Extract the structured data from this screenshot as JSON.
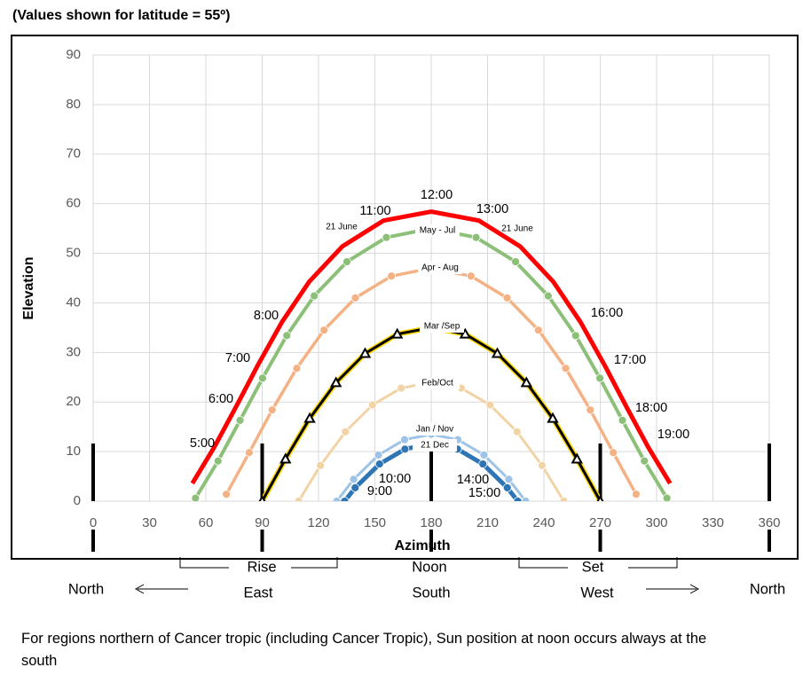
{
  "chart_data": {
    "type": "line",
    "title": "(Values shown for latitude = 55º)",
    "x_label": "Azimuth",
    "y_label": "Elevation",
    "xlim": [
      0,
      360
    ],
    "ylim": [
      0,
      90
    ],
    "xticks": [
      0,
      30,
      60,
      90,
      120,
      150,
      180,
      210,
      240,
      270,
      300,
      330,
      360
    ],
    "yticks": [
      0,
      10,
      20,
      30,
      40,
      50,
      60,
      70,
      80,
      90
    ],
    "grid": true,
    "series": [
      {
        "name": "21 June",
        "color": "#ff0000",
        "x": [
          52.8,
          64.5,
          76.0,
          87.8,
          100.5,
          115.1,
          132.7,
          154.6,
          180,
          205.4,
          227.3,
          244.9,
          259.5,
          272.2,
          284.0,
          295.5,
          307.2
        ],
        "values": [
          3.6,
          10.9,
          19.0,
          27.5,
          36.1,
          44.3,
          51.4,
          56.6,
          58.4,
          56.6,
          51.4,
          44.3,
          36.1,
          27.5,
          19.0,
          10.9,
          3.6
        ]
      },
      {
        "name": "May - Jul",
        "color": "#8cc078",
        "x": [
          54.5,
          66.5,
          78.2,
          90.2,
          103.1,
          117.7,
          135.1,
          156.1,
          180,
          203.9,
          224.9,
          242.3,
          256.9,
          269.8,
          281.8,
          293.5,
          305.5
        ],
        "values": [
          0.6,
          8.1,
          16.3,
          24.8,
          33.4,
          41.4,
          48.3,
          53.2,
          55.0,
          53.2,
          48.3,
          41.4,
          33.4,
          24.8,
          16.3,
          8.1,
          0.6
        ]
      },
      {
        "name": "Apr - Aug",
        "color": "#f4b183",
        "x": [
          70.9,
          83.1,
          95.3,
          108.4,
          122.9,
          139.6,
          158.8,
          180,
          201.2,
          220.4,
          237.1,
          251.6,
          264.7,
          276.9,
          289.1
        ],
        "values": [
          1.4,
          9.8,
          18.4,
          26.8,
          34.5,
          41.0,
          45.4,
          47.0,
          45.4,
          41.0,
          34.5,
          26.8,
          18.4,
          9.8,
          1.4
        ]
      },
      {
        "name": "Mar /Sep",
        "color": "#000000",
        "x": [
          90,
          102.4,
          115.3,
          129.3,
          144.8,
          161.9,
          180,
          198.1,
          215.2,
          230.7,
          244.7,
          257.6,
          270
        ],
        "values": [
          0,
          8.5,
          16.7,
          23.9,
          29.8,
          33.7,
          35.0,
          33.7,
          29.8,
          23.9,
          16.7,
          8.5,
          0
        ]
      },
      {
        "name": "Feb/Oct",
        "color": "#f2d3a6",
        "x": [
          109.4,
          121.0,
          134.3,
          148.7,
          164.0,
          180,
          196.0,
          211.3,
          225.7,
          239.0,
          250.6
        ],
        "values": [
          0,
          7.2,
          14.0,
          19.4,
          22.8,
          24.0,
          22.8,
          19.4,
          14.0,
          7.2,
          0
        ]
      },
      {
        "name": "Jan / Nov",
        "color": "#9dc3e6",
        "x": [
          129.7,
          138.7,
          151.9,
          165.8,
          180,
          194.2,
          208.1,
          221.3,
          230.3
        ],
        "values": [
          0,
          4.4,
          9.3,
          12.4,
          13.5,
          12.4,
          9.3,
          4.4,
          0
        ]
      },
      {
        "name": "21 Dec",
        "color": "#2e75b6",
        "x": [
          133.9,
          139.5,
          152.5,
          166.0,
          180,
          194.0,
          207.5,
          220.5,
          226.1
        ],
        "values": [
          0,
          2.7,
          7.5,
          10.5,
          11.6,
          10.5,
          7.5,
          2.7,
          0
        ]
      }
    ],
    "hour_labels": [
      "5:00",
      "6:00",
      "7:00",
      "8:00",
      "9:00",
      "10:00",
      "11:00",
      "12:00",
      "13:00",
      "14:00",
      "15:00",
      "16:00",
      "17:00",
      "18:00",
      "19:00"
    ],
    "direction_marks": [
      0,
      90,
      180,
      270,
      360
    ],
    "compass": {
      "rise": "Rise",
      "noon": "Noon",
      "set": "Set",
      "north_left": "North",
      "east": "East",
      "south": "South",
      "west": "West",
      "north_right": "North"
    },
    "footnote": "For regions northern of Cancer tropic (including Cancer Tropic), Sun position at noon occurs always at the south"
  }
}
